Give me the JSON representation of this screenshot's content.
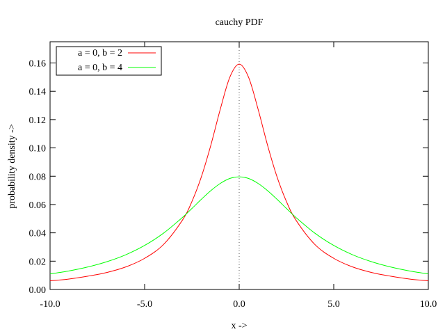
{
  "chart_data": {
    "type": "line",
    "title": "cauchy PDF",
    "xlabel": "x ->",
    "ylabel": "probability density ->",
    "xlim": [
      -10,
      10
    ],
    "ylim": [
      0,
      0.175
    ],
    "xticks": [
      -10,
      -5,
      0,
      5,
      10
    ],
    "xtick_labels": [
      "-10.0",
      "-5.0",
      "0.0",
      "5.0",
      "10.0"
    ],
    "yticks": [
      0,
      0.02,
      0.04,
      0.06,
      0.08,
      0.1,
      0.12,
      0.14,
      0.16
    ],
    "ytick_labels": [
      "0.00",
      "0.02",
      "0.04",
      "0.06",
      "0.08",
      "0.10",
      "0.12",
      "0.14",
      "0.16"
    ],
    "grid": false,
    "zero_axis_dotted": true,
    "legend_position": "top-left",
    "x": [
      -10,
      -9,
      -8,
      -7,
      -6,
      -5,
      -4,
      -3,
      -2.5,
      -2,
      -1.5,
      -1,
      -0.5,
      0,
      0.5,
      1,
      1.5,
      2,
      2.5,
      3,
      4,
      5,
      6,
      7,
      8,
      9,
      10
    ],
    "series": [
      {
        "name": "a = 0, b = 2",
        "color": "#ff0000",
        "values": [
          0.0061,
          0.0074,
          0.0094,
          0.012,
          0.0159,
          0.022,
          0.0318,
          0.049,
          0.0621,
          0.0796,
          0.1019,
          0.1273,
          0.1498,
          0.1592,
          0.1498,
          0.1273,
          0.1019,
          0.0796,
          0.0621,
          0.049,
          0.0318,
          0.022,
          0.0159,
          0.012,
          0.0094,
          0.0074,
          0.0061
        ]
      },
      {
        "name": "a = 0, b = 4",
        "color": "#00ff00",
        "values": [
          0.011,
          0.0131,
          0.0159,
          0.0196,
          0.0245,
          0.0311,
          0.0398,
          0.0509,
          0.0572,
          0.0637,
          0.0698,
          0.0749,
          0.0784,
          0.0796,
          0.0784,
          0.0749,
          0.0698,
          0.0637,
          0.0572,
          0.0509,
          0.0398,
          0.0311,
          0.0245,
          0.0196,
          0.0159,
          0.0131,
          0.011
        ]
      }
    ]
  }
}
